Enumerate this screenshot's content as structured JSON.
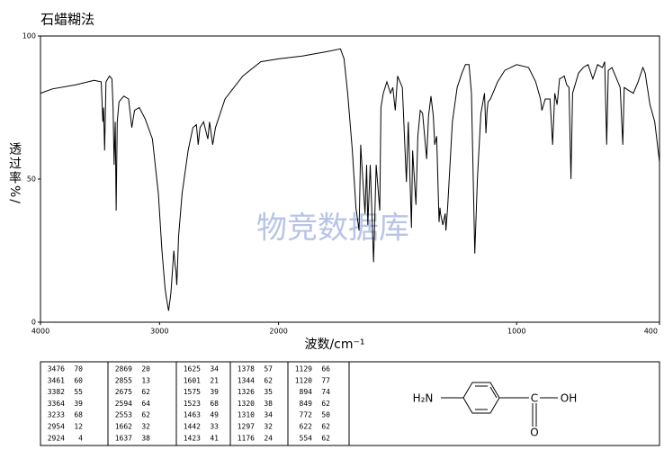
{
  "chart_data": {
    "type": "line",
    "title": "石蜡糊法",
    "y_label": "透过率%/",
    "x_label": "波数/cm⁻¹",
    "watermark": "物竞数据库",
    "xlim": [
      4000,
      400
    ],
    "xticks": [
      4000,
      3000,
      2000,
      1000,
      400
    ],
    "ylim": [
      0,
      100
    ],
    "yticks": [
      0,
      50,
      100
    ],
    "scale_break": 2000,
    "color": "#000000",
    "x": [
      4000,
      3900,
      3700,
      3550,
      3490,
      3476,
      3470,
      3461,
      3450,
      3420,
      3400,
      3390,
      3382,
      3372,
      3364,
      3355,
      3340,
      3300,
      3260,
      3233,
      3210,
      3170,
      3120,
      3060,
      3010,
      2980,
      2954,
      2940,
      2924,
      2905,
      2880,
      2869,
      2862,
      2855,
      2840,
      2810,
      2760,
      2720,
      2690,
      2675,
      2660,
      2630,
      2594,
      2580,
      2553,
      2530,
      2450,
      2300,
      2150,
      2000,
      1900,
      1800,
      1740,
      1725,
      1710,
      1690,
      1675,
      1662,
      1655,
      1650,
      1637,
      1630,
      1625,
      1615,
      1601,
      1590,
      1575,
      1570,
      1560,
      1545,
      1530,
      1520,
      1510,
      1500,
      1480,
      1463,
      1455,
      1442,
      1437,
      1423,
      1415,
      1405,
      1395,
      1378,
      1370,
      1360,
      1350,
      1344,
      1336,
      1326,
      1322,
      1320,
      1315,
      1310,
      1300,
      1297,
      1290,
      1270,
      1250,
      1230,
      1215,
      1200,
      1190,
      1176,
      1165,
      1150,
      1135,
      1129,
      1124,
      1120,
      1110,
      1080,
      1050,
      1000,
      950,
      920,
      900,
      894,
      880,
      860,
      849,
      840,
      830,
      820,
      800,
      790,
      780,
      772,
      765,
      740,
      720,
      700,
      680,
      660,
      640,
      630,
      622,
      615,
      600,
      580,
      565,
      554,
      548,
      530,
      510,
      490,
      470,
      460,
      440,
      420,
      400
    ],
    "values": [
      80,
      81.5,
      83,
      84.5,
      84,
      70,
      75,
      60,
      84,
      86,
      85,
      75,
      55,
      70,
      39,
      70,
      77,
      79,
      78,
      68,
      74,
      75,
      71,
      64,
      45,
      25,
      12,
      8,
      4,
      10,
      25,
      20,
      18,
      13,
      30,
      45,
      60,
      68,
      69,
      62,
      68,
      70,
      64,
      70,
      62,
      68,
      78,
      86,
      91,
      92,
      93,
      94.5,
      95.5,
      92,
      80,
      60,
      40,
      32,
      62,
      55,
      38,
      55,
      34,
      55,
      21,
      55,
      39,
      75,
      80,
      84,
      80,
      82,
      74,
      86,
      82,
      49,
      70,
      33,
      60,
      41,
      65,
      74,
      73,
      57,
      72,
      79,
      72,
      62,
      65,
      35,
      40,
      38,
      36,
      34,
      38,
      32,
      40,
      70,
      82,
      87,
      90,
      90,
      80,
      24,
      50,
      73,
      80,
      66,
      74,
      77,
      78,
      84,
      88,
      90,
      89,
      84,
      78,
      74,
      78,
      78,
      62,
      80,
      76,
      85,
      86,
      83,
      82,
      50,
      80,
      87,
      89,
      90,
      85,
      90,
      89,
      91,
      62,
      88,
      89,
      85,
      82,
      62,
      82,
      81,
      80,
      84,
      89,
      87,
      76,
      70,
      56
    ]
  },
  "peak_table": [
    [
      [
        "3476",
        "70"
      ],
      [
        "3461",
        "60"
      ],
      [
        "3382",
        "55"
      ],
      [
        "3364",
        "39"
      ],
      [
        "3233",
        "68"
      ],
      [
        "2954",
        "12"
      ],
      [
        "2924",
        "4"
      ]
    ],
    [
      [
        "2869",
        "20"
      ],
      [
        "2855",
        "13"
      ],
      [
        "2675",
        "62"
      ],
      [
        "2594",
        "64"
      ],
      [
        "2553",
        "62"
      ],
      [
        "1662",
        "32"
      ],
      [
        "1637",
        "38"
      ]
    ],
    [
      [
        "1625",
        "34"
      ],
      [
        "1601",
        "21"
      ],
      [
        "1575",
        "39"
      ],
      [
        "1523",
        "68"
      ],
      [
        "1463",
        "49"
      ],
      [
        "1442",
        "33"
      ],
      [
        "1423",
        "41"
      ]
    ],
    [
      [
        "1378",
        "57"
      ],
      [
        "1344",
        "62"
      ],
      [
        "1326",
        "35"
      ],
      [
        "1320",
        "38"
      ],
      [
        "1310",
        "34"
      ],
      [
        "1297",
        "32"
      ],
      [
        "1176",
        "24"
      ]
    ],
    [
      [
        "1129",
        "66"
      ],
      [
        "1120",
        "77"
      ],
      [
        "894",
        "74"
      ],
      [
        "849",
        "62"
      ],
      [
        "772",
        "50"
      ],
      [
        "622",
        "62"
      ],
      [
        "554",
        "62"
      ]
    ]
  ],
  "structure": {
    "amine": "H₂N",
    "carbon": "C",
    "oxygen": "O",
    "hydroxyl": "OH"
  }
}
